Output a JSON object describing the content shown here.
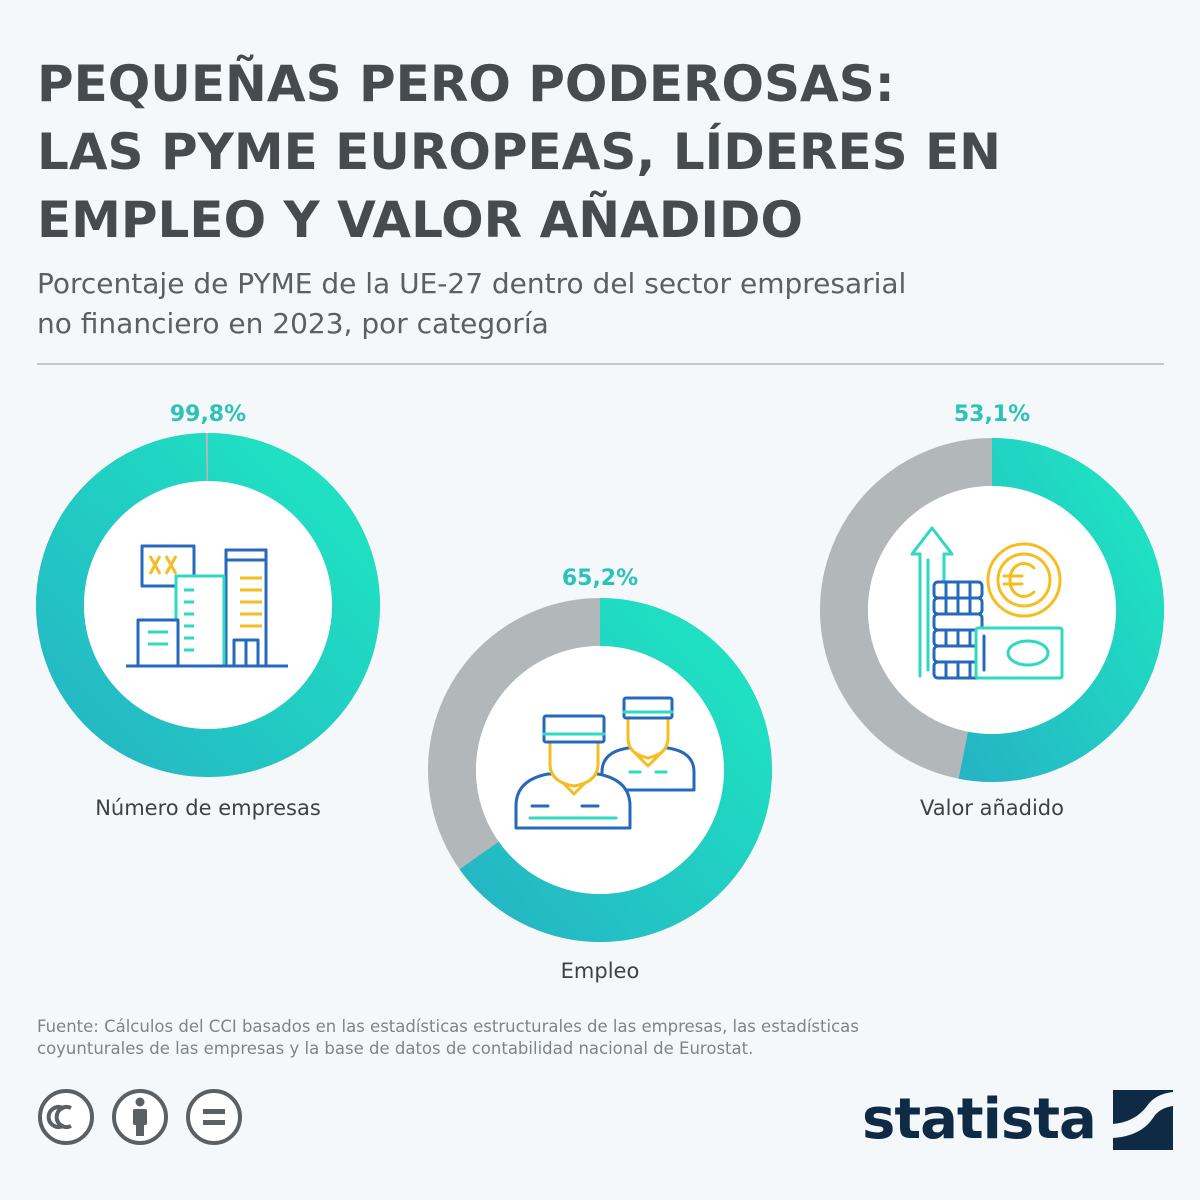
{
  "header": {
    "title_lines": [
      "PEQUEÑAS PERO PODEROSAS:",
      "LAS PYME EUROPEAS, LÍDERES EN",
      "EMPLEO Y VALOR AÑADIDO"
    ],
    "subtitle_lines": [
      "Porcentaje de PYME de la UE-27 dentro del sector empresarial",
      "no financiero en 2023, por categoría"
    ]
  },
  "chart_data": {
    "type": "pie",
    "title": "Porcentaje de PYME de la UE-27 dentro del sector empresarial no financiero en 2023, por categoría",
    "series": [
      {
        "name": "Número de empresas",
        "value": 99.8,
        "value_label": "99,8%",
        "icon": "buildings-icon"
      },
      {
        "name": "Empleo",
        "value": 65.2,
        "value_label": "65,2%",
        "icon": "workers-icon"
      },
      {
        "name": "Valor añadido",
        "value": 53.1,
        "value_label": "53,1%",
        "icon": "money-growth-icon"
      }
    ],
    "unit": "%",
    "max": 100
  },
  "colors": {
    "accent_start": "#1ee2c1",
    "accent_end": "#27b9c4",
    "remainder": "#b2b7ba",
    "label_teal": "#2bc3b8",
    "icon_blue": "#2569b8",
    "icon_yellow": "#f5bd22",
    "icon_teal": "#2ed8c1"
  },
  "footer": {
    "source_lines": [
      "Fuente: Cálculos del CCI basados en las estadísticas estructurales de las empresas, las estadísticas",
      "coyunturales de las empresas y la base de datos de contabilidad nacional de Eurostat."
    ],
    "license_icons": [
      "cc-icon",
      "attribution-icon",
      "no-derivatives-icon"
    ],
    "brand": "statista"
  }
}
